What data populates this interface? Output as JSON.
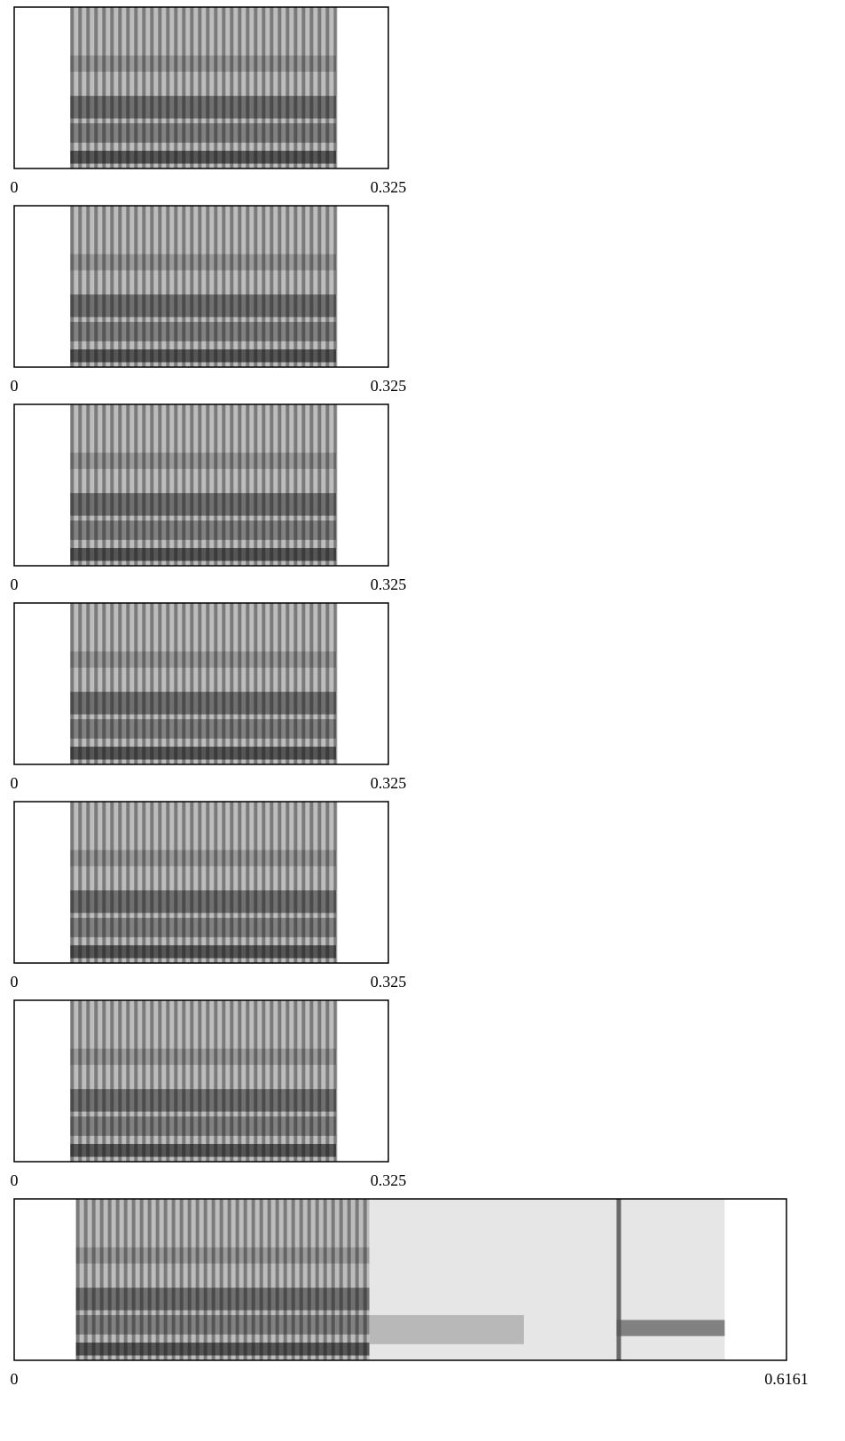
{
  "chart_data": [
    {
      "type": "spectrogram",
      "xlim": [
        0,
        0.325
      ],
      "xticks": [
        0,
        0.325
      ]
    },
    {
      "type": "spectrogram",
      "xlim": [
        0,
        0.325
      ],
      "xticks": [
        0,
        0.325
      ]
    },
    {
      "type": "spectrogram",
      "xlim": [
        0,
        0.325
      ],
      "xticks": [
        0,
        0.325
      ]
    },
    {
      "type": "spectrogram",
      "xlim": [
        0,
        0.325
      ],
      "xticks": [
        0,
        0.325
      ]
    },
    {
      "type": "spectrogram",
      "xlim": [
        0,
        0.325
      ],
      "xticks": [
        0,
        0.325
      ]
    },
    {
      "type": "spectrogram",
      "xlim": [
        0,
        0.325
      ],
      "xticks": [
        0,
        0.325
      ]
    },
    {
      "type": "spectrogram",
      "xlim": [
        0,
        0.6161
      ],
      "xticks": [
        0,
        0.6161
      ]
    }
  ]
}
